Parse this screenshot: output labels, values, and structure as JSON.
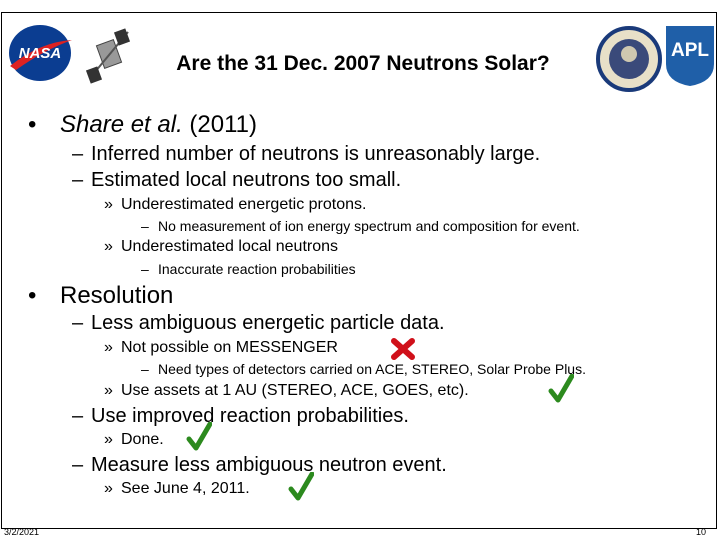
{
  "header": {
    "title": "Are the 31 Dec. 2007 Neutrons Solar?",
    "logo_left": "NASA",
    "logo_right": "APL"
  },
  "bullets": [
    {
      "marker": "•",
      "author": "Share et al.",
      "year": "(2011)"
    },
    {
      "marker": "–",
      "text": "Inferred number of neutrons is unreasonably large."
    },
    {
      "marker": "–",
      "text": "Estimated local neutrons too small."
    },
    {
      "marker": "»",
      "text": "Underestimated energetic protons."
    },
    {
      "marker": "–",
      "text": "No measurement of ion energy spectrum and composition for event."
    },
    {
      "marker": "»",
      "text": "Underestimated local neutrons"
    },
    {
      "marker": "–",
      "text": "Inaccurate reaction probabilities"
    },
    {
      "marker": "•",
      "text": "Resolution"
    },
    {
      "marker": "–",
      "text": "Less ambiguous energetic particle data."
    },
    {
      "marker": "»",
      "text": "Not possible on MESSENGER"
    },
    {
      "marker": "–",
      "text": "Need types of detectors carried on ACE, STEREO, Solar Probe Plus."
    },
    {
      "marker": "»",
      "text": "Use assets at 1 AU (STEREO, ACE, GOES, etc)."
    },
    {
      "marker": "–",
      "text": "Use improved reaction probabilities."
    },
    {
      "marker": "»",
      "text": "Done."
    },
    {
      "marker": "–",
      "text": "Measure less ambiguous neutron event."
    },
    {
      "marker": "»",
      "text": "See June 4, 2011."
    }
  ],
  "footer": {
    "date": "3/2/2021",
    "page": "10"
  }
}
